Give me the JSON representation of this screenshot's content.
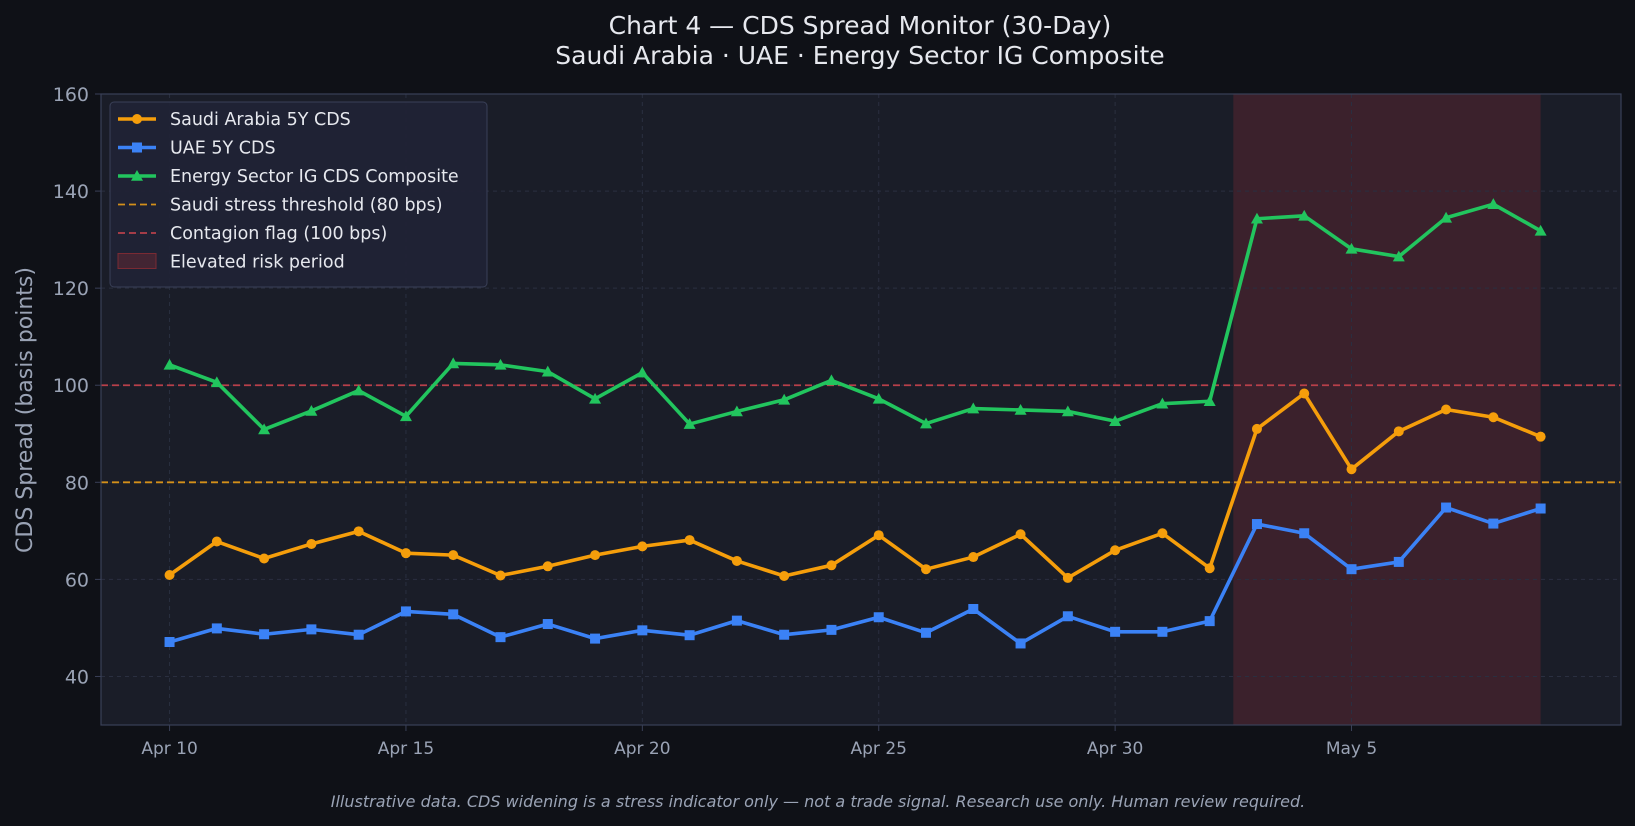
{
  "chart_data": {
    "type": "line",
    "title": "Chart 4 — CDS Spread Monitor (30-Day)",
    "subtitle": "Saudi Arabia · UAE · Energy Sector IG Composite",
    "xlabel": "",
    "ylabel": "CDS Spread (basis points)",
    "ylim": [
      30,
      160
    ],
    "yticks": [
      40,
      60,
      80,
      100,
      120,
      140,
      160
    ],
    "x": [
      "Apr 10",
      "Apr 11",
      "Apr 12",
      "Apr 13",
      "Apr 14",
      "Apr 15",
      "Apr 16",
      "Apr 17",
      "Apr 18",
      "Apr 19",
      "Apr 20",
      "Apr 21",
      "Apr 22",
      "Apr 23",
      "Apr 24",
      "Apr 25",
      "Apr 26",
      "Apr 27",
      "Apr 28",
      "Apr 29",
      "Apr 30",
      "May 1",
      "May 2",
      "May 3",
      "May 4",
      "May 5",
      "May 6",
      "May 7",
      "May 8",
      "May 9"
    ],
    "xticks": [
      "Apr 10",
      "Apr 15",
      "Apr 20",
      "Apr 25",
      "Apr 30",
      "May 5"
    ],
    "xlim": [
      "Apr 8.55",
      "May 10.7"
    ],
    "grid": true,
    "legend_position": "top-left",
    "series": [
      {
        "name": "Saudi Arabia 5Y CDS",
        "color": "#f59e0b",
        "marker": "circle",
        "values": [
          60.9,
          67.8,
          64.3,
          67.3,
          69.9,
          65.4,
          65.0,
          60.8,
          62.7,
          65.0,
          66.8,
          68.1,
          63.8,
          60.7,
          62.9,
          69.1,
          62.1,
          64.6,
          69.3,
          60.3,
          66.0,
          69.5,
          62.3,
          91.0,
          98.3,
          82.7,
          90.5,
          95.0,
          93.4,
          89.4
        ]
      },
      {
        "name": "UAE 5Y CDS",
        "color": "#3b82f6",
        "marker": "square",
        "values": [
          47.1,
          49.9,
          48.7,
          49.7,
          48.6,
          53.4,
          52.8,
          48.1,
          50.8,
          47.8,
          49.5,
          48.5,
          51.5,
          48.6,
          49.6,
          52.2,
          49.0,
          53.9,
          46.8,
          52.4,
          49.2,
          49.2,
          51.4,
          71.4,
          69.5,
          62.1,
          63.6,
          74.8,
          71.5,
          74.6
        ]
      },
      {
        "name": "Energy Sector IG CDS Composite",
        "color": "#22c55e",
        "marker": "triangle",
        "values": [
          104.2,
          100.6,
          90.9,
          94.7,
          98.9,
          93.6,
          104.5,
          104.2,
          102.8,
          97.2,
          102.6,
          92.0,
          94.6,
          97.0,
          101.0,
          97.2,
          92.1,
          95.2,
          94.9,
          94.6,
          92.6,
          96.2,
          96.7,
          134.3,
          134.9,
          128.1,
          126.5,
          134.5,
          137.3,
          131.8
        ]
      }
    ],
    "reference_lines": [
      {
        "name": "Saudi stress threshold (80 bps)",
        "value": 80,
        "color": "#d4901a",
        "style": "dashed"
      },
      {
        "name": "Contagion flag (100 bps)",
        "value": 100,
        "color": "#b8404a",
        "style": "dashed"
      }
    ],
    "shaded_regions": [
      {
        "name": "Elevated risk period",
        "from": "May 2.5",
        "to": "May 9",
        "color": "#7a2a33"
      }
    ],
    "footer": "Illustrative data. CDS widening is a stress indicator only — not a trade signal. Research use only. Human review required."
  },
  "colors": {
    "background": "#0f1117",
    "plot_background": "#1a1d28",
    "grid": "#2a2f40",
    "axis": "#3a4058",
    "legend_background": "#1f2335"
  }
}
